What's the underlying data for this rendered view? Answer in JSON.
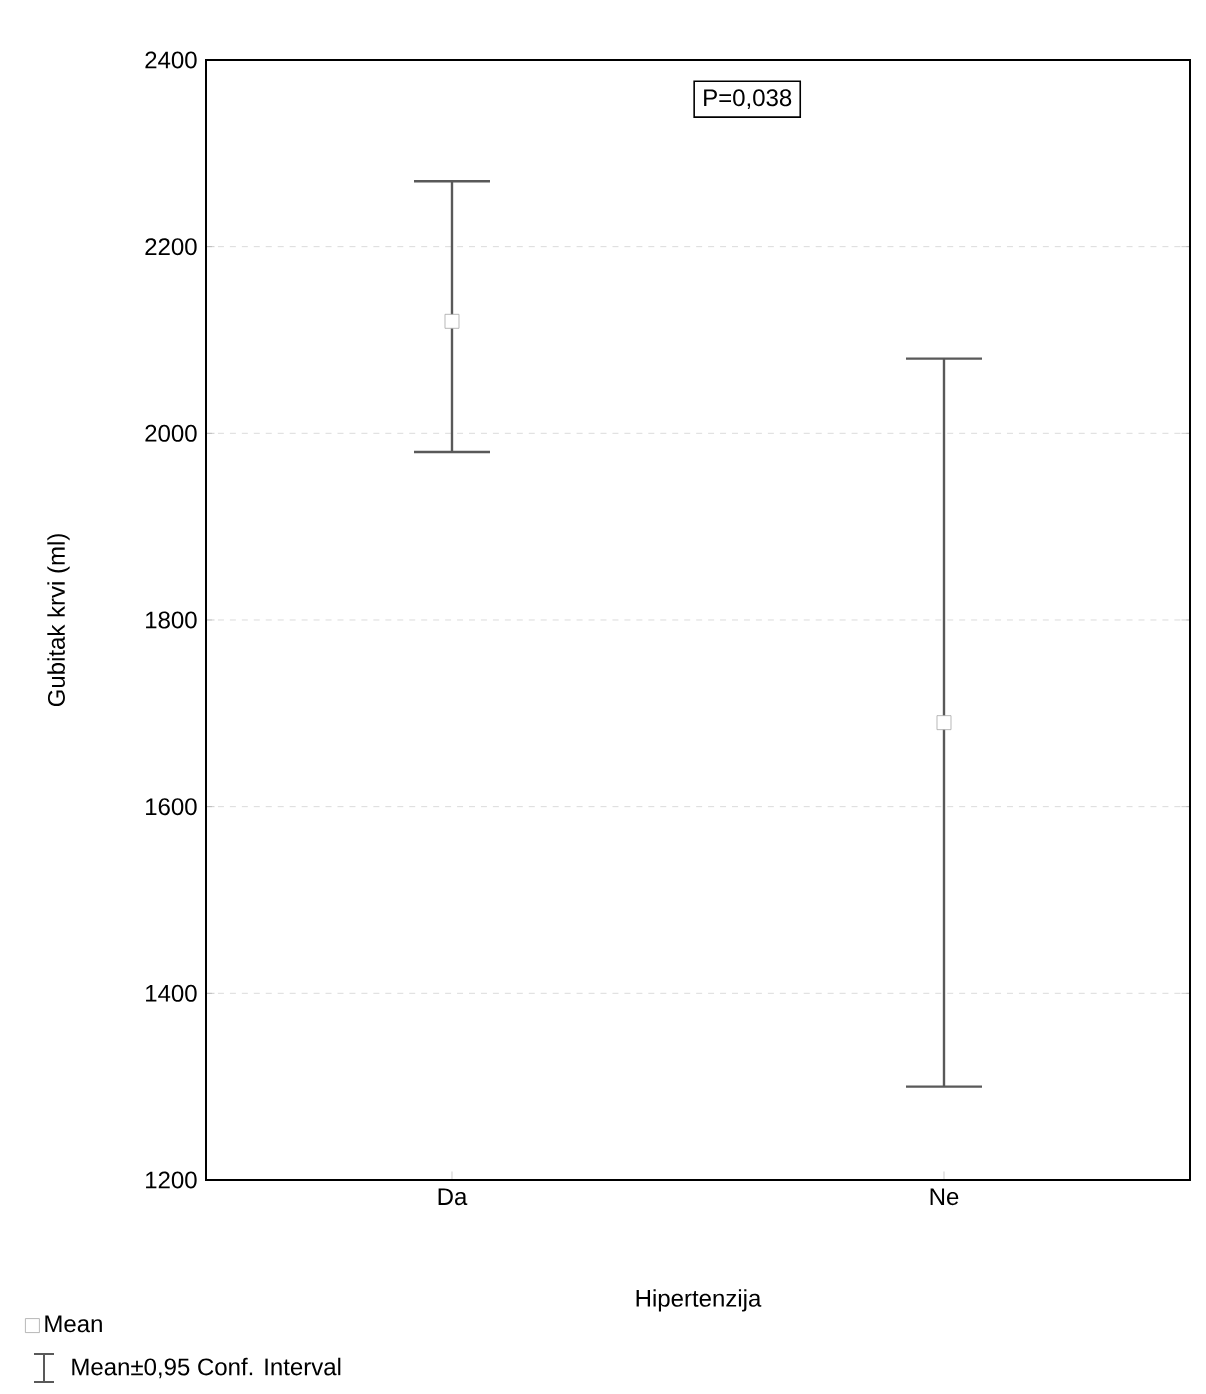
{
  "chart_data": {
    "type": "scatter",
    "xlabel": "Hipertenzija",
    "ylabel": "Gubitak krvi (ml)",
    "categories": [
      "Da",
      "Ne"
    ],
    "series": [
      {
        "name": "Mean",
        "color": "#ffffff",
        "values": [
          2120,
          1690
        ],
        "errors": [
          [
            1980,
            2270
          ],
          [
            1300,
            2080
          ]
        ]
      }
    ],
    "ylim": [
      1200,
      2400
    ],
    "yticks": [
      1200,
      1400,
      1600,
      1800,
      2000,
      2200,
      2400
    ],
    "grid": "y",
    "marker": "square",
    "legend": "bottom left",
    "annotations": [
      "P=0,038",
      "Mean±0,95 Conf. Interval"
    ]
  }
}
